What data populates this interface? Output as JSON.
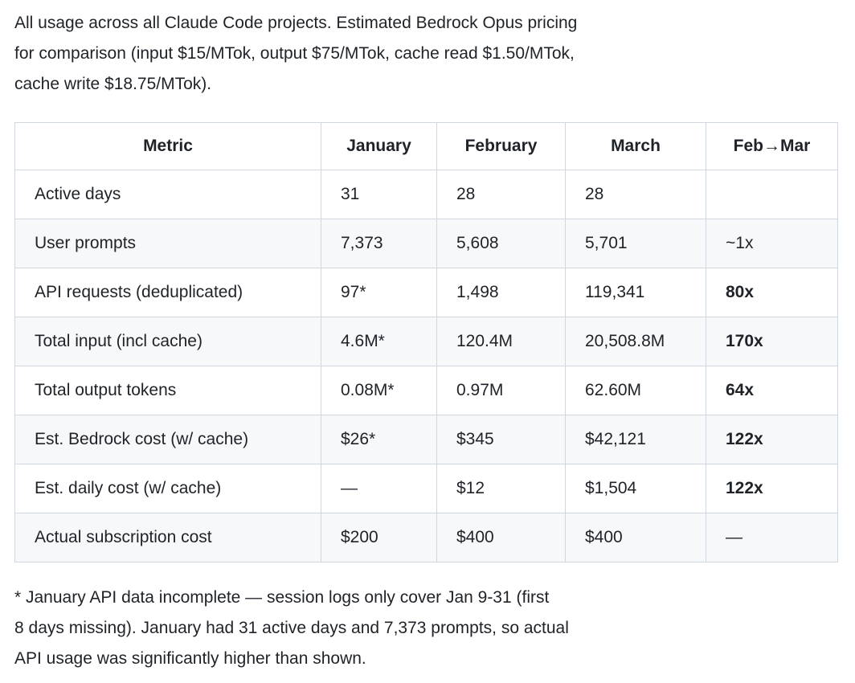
{
  "colors": {
    "text": "#1f2328",
    "row_alt_bg": "#f6f8fa",
    "border": "#d0d7de",
    "background": "#ffffff"
  },
  "intro": {
    "lines": [
      "All usage across all Claude Code projects. Estimated Bedrock Opus pricing",
      "for comparison (input $15/MTok, output $75/MTok, cache read $1.50/MTok,",
      "cache write $18.75/MTok)."
    ]
  },
  "table": {
    "headers": [
      "Metric",
      "January",
      "February",
      "March",
      "Feb→Mar"
    ],
    "rows": [
      {
        "metric": "Active days",
        "january": "31",
        "february": "28",
        "march": "28",
        "change": ""
      },
      {
        "metric": "User prompts",
        "january": "7,373",
        "february": "5,608",
        "march": "5,701",
        "change": "~1x"
      },
      {
        "metric": "API requests (deduplicated)",
        "january": "97*",
        "february": "1,498",
        "march": "119,341",
        "change": "80x"
      },
      {
        "metric": "Total input (incl cache)",
        "january": "4.6M*",
        "february": "120.4M",
        "march": "20,508.8M",
        "change": "170x"
      },
      {
        "metric": "Total output tokens",
        "january": "0.08M*",
        "february": "0.97M",
        "march": "62.60M",
        "change": "64x"
      },
      {
        "metric": "Est. Bedrock cost (w/ cache)",
        "january": "$26*",
        "february": "$345",
        "march": "$42,121",
        "change": "122x"
      },
      {
        "metric": "Est. daily cost (w/ cache)",
        "january": "—",
        "february": "$12",
        "march": "$1,504",
        "change": "122x"
      },
      {
        "metric": "Actual subscription cost",
        "january": "$200",
        "february": "$400",
        "march": "$400",
        "change": "—"
      }
    ]
  },
  "footnote": {
    "lines": [
      "* January API data incomplete — session logs only cover Jan 9-31 (first",
      "8 days missing). January had 31 active days and 7,373 prompts, so actual",
      "API usage was significantly higher than shown."
    ]
  }
}
